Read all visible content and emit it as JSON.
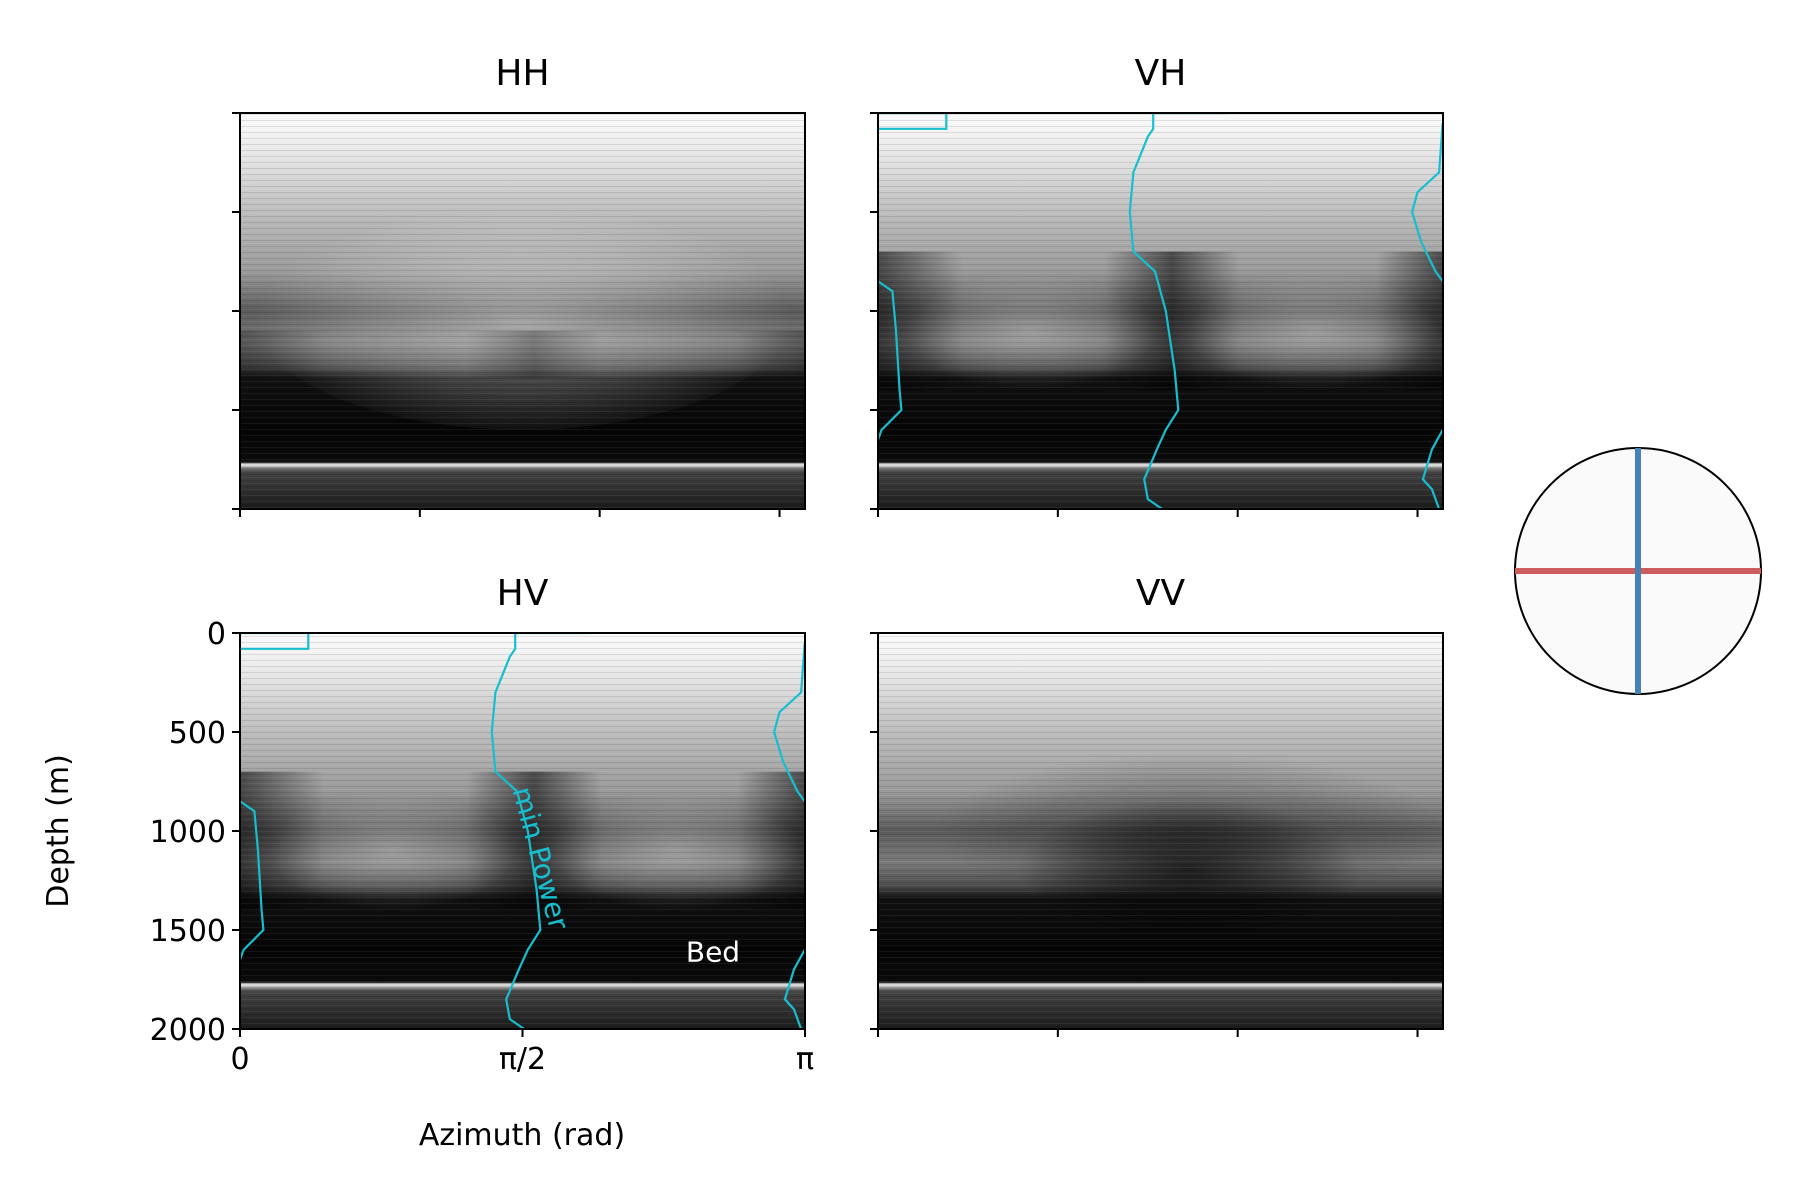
{
  "chart_data": {
    "type": "heatmap",
    "shared_axes": {
      "xlabel": "Azimuth (rad)",
      "ylabel": "Depth (m)",
      "xlim": [
        0,
        3.1416
      ],
      "ylim": [
        2000,
        0
      ],
      "x_ticks": [
        0,
        1.5708,
        3.1416
      ],
      "x_tick_labels": [
        "0",
        "π/2",
        "π"
      ],
      "y_ticks": [
        0,
        500,
        1000,
        1500,
        2000
      ],
      "y_tick_labels": [
        "0",
        "500",
        "1000",
        "1500",
        "2000"
      ],
      "colormap": "gray"
    },
    "panels": [
      {
        "title": "HH",
        "show_tick_labels": false,
        "pattern": "hh",
        "min_power_line": []
      },
      {
        "title": "VH",
        "show_tick_labels": false,
        "pattern": "cross",
        "min_power_line": [
          {
            "segments": [
              [
                0,
                0
              ],
              [
                0.38,
                0
              ],
              [
                0.38,
                80
              ],
              [
                0,
                80
              ]
            ]
          },
          {
            "segments": [
              [
                1.95,
                0
              ],
              [
                1.53,
                0
              ],
              [
                1.53,
                80
              ],
              [
                1.5,
                120
              ],
              [
                1.42,
                300
              ],
              [
                1.4,
                500
              ],
              [
                1.42,
                700
              ],
              [
                1.54,
                800
              ],
              [
                1.6,
                1000
              ],
              [
                1.65,
                1300
              ],
              [
                1.67,
                1500
              ],
              [
                1.6,
                1600
              ],
              [
                1.55,
                1700
              ],
              [
                1.48,
                1850
              ],
              [
                1.5,
                1950
              ],
              [
                1.58,
                2000
              ]
            ]
          },
          {
            "segments": [
              [
                0,
                850
              ],
              [
                0.08,
                900
              ],
              [
                0.1,
                1100
              ],
              [
                0.12,
                1400
              ],
              [
                0.13,
                1500
              ],
              [
                0.02,
                1600
              ],
              [
                0,
                1650
              ]
            ]
          },
          {
            "segments": [
              [
                3.14,
                50
              ],
              [
                3.12,
                300
              ],
              [
                3.0,
                400
              ],
              [
                2.97,
                500
              ],
              [
                3.02,
                650
              ],
              [
                3.1,
                800
              ],
              [
                3.14,
                850
              ]
            ]
          },
          {
            "segments": [
              [
                3.14,
                1600
              ],
              [
                3.08,
                1700
              ],
              [
                3.03,
                1850
              ],
              [
                3.08,
                1900
              ],
              [
                3.12,
                2000
              ]
            ]
          }
        ]
      },
      {
        "title": "HV",
        "show_tick_labels": true,
        "pattern": "cross",
        "min_power_line": [
          {
            "segments": [
              [
                0,
                0
              ],
              [
                0.38,
                0
              ],
              [
                0.38,
                80
              ],
              [
                0,
                80
              ]
            ]
          },
          {
            "segments": [
              [
                1.95,
                0
              ],
              [
                1.53,
                0
              ],
              [
                1.53,
                80
              ],
              [
                1.5,
                120
              ],
              [
                1.42,
                300
              ],
              [
                1.4,
                500
              ],
              [
                1.42,
                700
              ],
              [
                1.54,
                800
              ],
              [
                1.6,
                1000
              ],
              [
                1.65,
                1300
              ],
              [
                1.67,
                1500
              ],
              [
                1.6,
                1600
              ],
              [
                1.55,
                1700
              ],
              [
                1.48,
                1850
              ],
              [
                1.5,
                1950
              ],
              [
                1.58,
                2000
              ]
            ]
          },
          {
            "segments": [
              [
                0,
                850
              ],
              [
                0.08,
                900
              ],
              [
                0.1,
                1100
              ],
              [
                0.12,
                1400
              ],
              [
                0.13,
                1500
              ],
              [
                0.02,
                1600
              ],
              [
                0,
                1650
              ]
            ]
          },
          {
            "segments": [
              [
                3.14,
                50
              ],
              [
                3.12,
                300
              ],
              [
                3.0,
                400
              ],
              [
                2.97,
                500
              ],
              [
                3.02,
                650
              ],
              [
                3.1,
                800
              ],
              [
                3.14,
                850
              ]
            ]
          },
          {
            "segments": [
              [
                3.14,
                1600
              ],
              [
                3.08,
                1700
              ],
              [
                3.03,
                1850
              ],
              [
                3.08,
                1900
              ],
              [
                3.12,
                2000
              ]
            ]
          }
        ],
        "annotations": [
          {
            "text": "min Power",
            "x": 1.62,
            "y": 1150,
            "rotation": 75,
            "color": "#17becf"
          },
          {
            "text": "Bed",
            "x": 2.63,
            "y": 1660,
            "color": "#ffffff"
          }
        ]
      },
      {
        "title": "VV",
        "show_tick_labels": false,
        "pattern": "vv",
        "min_power_line": []
      }
    ],
    "bed_depth": 1780,
    "inset": {
      "type": "polarization-diagram",
      "vertical_color": "#4682b4",
      "horizontal_color": "#cd5c5c"
    }
  },
  "colors": {
    "min_power_line": "#17becf",
    "bed_label": "#ffffff",
    "axis": "#000000"
  }
}
